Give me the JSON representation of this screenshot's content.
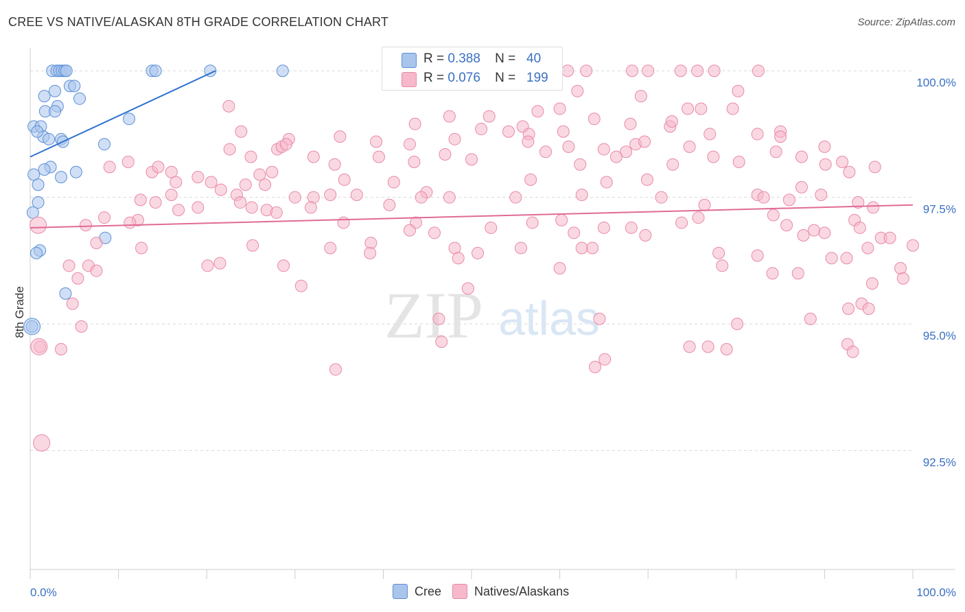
{
  "title": "CREE VS NATIVE/ALASKAN 8TH GRADE CORRELATION CHART",
  "source": "Source: ZipAtlas.com",
  "watermark": {
    "zip": "ZIP",
    "atlas": "atlas"
  },
  "stats": [
    {
      "series": "Cree",
      "r_label": "R =",
      "r": "0.388",
      "n_label": "N =",
      "n": "40",
      "color": "#a9c5ec",
      "edge": "#5b8fd6"
    },
    {
      "series": "Natives/Alaskans",
      "r_label": "R =",
      "r": "0.076",
      "n_label": "N =",
      "n": "199",
      "color": "#f6b8ca",
      "edge": "#e889a8"
    }
  ],
  "legend": [
    {
      "label": "Cree",
      "color": "#a9c5ec",
      "edge": "#5b8fd6"
    },
    {
      "label": "Natives/Alaskans",
      "color": "#f6b8ca",
      "edge": "#e889a8"
    }
  ],
  "chart_data": {
    "type": "scatter",
    "title": "CREE VS NATIVE/ALASKAN 8TH GRADE CORRELATION CHART",
    "xlabel": "",
    "ylabel": "8th Grade",
    "xlim": [
      0,
      100
    ],
    "ylim": [
      90.15,
      100.45
    ],
    "x_tick_labels": [
      {
        "value": 0,
        "label": "0.0%"
      },
      {
        "value": 100,
        "label": "100.0%"
      }
    ],
    "y_ticks": [
      {
        "value": 100.0,
        "label": "100.0%"
      },
      {
        "value": 97.5,
        "label": "97.5%"
      },
      {
        "value": 95.0,
        "label": "95.0%"
      },
      {
        "value": 92.5,
        "label": "92.5%"
      }
    ],
    "series": [
      {
        "name": "Cree",
        "color": "#5b8fd6",
        "fill": "#a9c5ec",
        "trend": {
          "x": [
            0,
            21
          ],
          "y": [
            98.3,
            100.0
          ]
        },
        "points": [
          [
            2.5,
            100.0
          ],
          [
            3.0,
            100.0
          ],
          [
            3.3,
            100.0
          ],
          [
            3.6,
            100.0
          ],
          [
            3.9,
            100.0
          ],
          [
            4.1,
            100.0
          ],
          [
            13.8,
            100.0
          ],
          [
            14.2,
            100.0
          ],
          [
            20.4,
            100.0
          ],
          [
            28.6,
            100.0
          ],
          [
            4.5,
            99.7
          ],
          [
            5.0,
            99.7
          ],
          [
            2.8,
            99.6
          ],
          [
            1.6,
            99.5
          ],
          [
            5.6,
            99.45
          ],
          [
            3.1,
            99.3
          ],
          [
            1.7,
            99.2
          ],
          [
            2.8,
            99.2
          ],
          [
            11.2,
            99.05
          ],
          [
            0.4,
            98.9
          ],
          [
            1.2,
            98.9
          ],
          [
            1.5,
            98.7
          ],
          [
            2.1,
            98.65
          ],
          [
            3.5,
            98.65
          ],
          [
            3.7,
            98.6
          ],
          [
            8.4,
            98.55
          ],
          [
            0.8,
            98.8
          ],
          [
            2.3,
            98.1
          ],
          [
            1.6,
            98.05
          ],
          [
            5.2,
            98.0
          ],
          [
            3.5,
            97.9
          ],
          [
            0.4,
            97.95
          ],
          [
            0.9,
            97.75
          ],
          [
            0.9,
            97.4
          ],
          [
            0.3,
            97.2
          ],
          [
            8.5,
            96.7
          ],
          [
            1.1,
            96.45
          ],
          [
            0.7,
            96.4
          ],
          [
            4.0,
            95.6
          ],
          [
            0.2,
            94.95
          ]
        ],
        "large_points": [
          [
            0.2,
            94.95
          ]
        ]
      },
      {
        "name": "Natives/Alaskans",
        "color": "#e889a8",
        "fill": "#f6b8ca",
        "trend": {
          "x": [
            0,
            100
          ],
          "y": [
            96.9,
            97.35
          ]
        },
        "points": [
          [
            46.0,
            100.0
          ],
          [
            50.0,
            100.0
          ],
          [
            55.6,
            100.0
          ],
          [
            60.9,
            100.0
          ],
          [
            70.0,
            100.0
          ],
          [
            75.6,
            100.0
          ],
          [
            68.2,
            100.0
          ],
          [
            73.7,
            100.0
          ],
          [
            77.5,
            100.0
          ],
          [
            82.5,
            100.0
          ],
          [
            63.0,
            100.0
          ],
          [
            62.0,
            99.6
          ],
          [
            80.2,
            99.6
          ],
          [
            69.2,
            99.5
          ],
          [
            74.5,
            99.25
          ],
          [
            76.0,
            99.25
          ],
          [
            79.6,
            99.25
          ],
          [
            22.5,
            99.3
          ],
          [
            60.0,
            99.25
          ],
          [
            57.5,
            99.2
          ],
          [
            47.5,
            99.1
          ],
          [
            52.0,
            99.1
          ],
          [
            55.8,
            98.9
          ],
          [
            63.9,
            99.05
          ],
          [
            68.0,
            98.95
          ],
          [
            72.5,
            98.9
          ],
          [
            72.7,
            99.0
          ],
          [
            43.6,
            98.95
          ],
          [
            51.1,
            98.85
          ],
          [
            54.2,
            98.8
          ],
          [
            56.5,
            98.75
          ],
          [
            60.4,
            98.8
          ],
          [
            77.0,
            98.75
          ],
          [
            82.4,
            98.75
          ],
          [
            85.0,
            98.8
          ],
          [
            85.0,
            98.7
          ],
          [
            39.2,
            98.6
          ],
          [
            48.1,
            98.65
          ],
          [
            56.4,
            98.6
          ],
          [
            68.6,
            98.55
          ],
          [
            61.0,
            98.5
          ],
          [
            67.5,
            98.4
          ],
          [
            69.6,
            98.6
          ],
          [
            65.0,
            98.45
          ],
          [
            74.7,
            98.5
          ],
          [
            84.5,
            98.4
          ],
          [
            29.3,
            98.65
          ],
          [
            28.0,
            98.45
          ],
          [
            28.5,
            98.5
          ],
          [
            29.0,
            98.55
          ],
          [
            23.9,
            98.8
          ],
          [
            22.6,
            98.45
          ],
          [
            35.1,
            98.7
          ],
          [
            25.0,
            98.3
          ],
          [
            39.5,
            98.3
          ],
          [
            43.5,
            98.2
          ],
          [
            47.0,
            98.35
          ],
          [
            43.0,
            98.55
          ],
          [
            32.1,
            98.3
          ],
          [
            34.5,
            98.15
          ],
          [
            50.0,
            98.25
          ],
          [
            58.4,
            98.4
          ],
          [
            62.3,
            98.15
          ],
          [
            66.4,
            98.3
          ],
          [
            72.8,
            98.15
          ],
          [
            77.4,
            98.3
          ],
          [
            80.3,
            98.2
          ],
          [
            87.4,
            98.3
          ],
          [
            90.1,
            98.15
          ],
          [
            92.8,
            98.0
          ],
          [
            95.7,
            98.1
          ],
          [
            92.0,
            98.2
          ],
          [
            90.0,
            98.5
          ],
          [
            11.1,
            98.2
          ],
          [
            9.0,
            98.1
          ],
          [
            13.8,
            98.0
          ],
          [
            14.5,
            98.1
          ],
          [
            16.0,
            98.0
          ],
          [
            16.5,
            97.8
          ],
          [
            19.0,
            97.9
          ],
          [
            27.4,
            98.0
          ],
          [
            26.0,
            97.95
          ],
          [
            21.6,
            97.65
          ],
          [
            20.5,
            97.8
          ],
          [
            24.4,
            97.75
          ],
          [
            26.6,
            97.75
          ],
          [
            41.2,
            97.8
          ],
          [
            35.6,
            97.85
          ],
          [
            44.9,
            97.6
          ],
          [
            56.7,
            97.85
          ],
          [
            65.3,
            97.8
          ],
          [
            69.9,
            97.85
          ],
          [
            82.4,
            97.55
          ],
          [
            87.4,
            97.7
          ],
          [
            89.6,
            97.55
          ],
          [
            93.8,
            97.4
          ],
          [
            95.5,
            97.3
          ],
          [
            12.5,
            97.45
          ],
          [
            14.2,
            97.4
          ],
          [
            16.0,
            97.55
          ],
          [
            16.8,
            97.25
          ],
          [
            19.0,
            97.3
          ],
          [
            23.4,
            97.55
          ],
          [
            23.8,
            97.4
          ],
          [
            25.1,
            97.3
          ],
          [
            26.8,
            97.25
          ],
          [
            27.9,
            97.2
          ],
          [
            30.0,
            97.5
          ],
          [
            32.1,
            97.5
          ],
          [
            34.0,
            97.55
          ],
          [
            37.0,
            97.55
          ],
          [
            40.7,
            97.35
          ],
          [
            44.3,
            97.5
          ],
          [
            47.5,
            97.5
          ],
          [
            55.0,
            97.5
          ],
          [
            62.5,
            97.55
          ],
          [
            71.5,
            97.5
          ],
          [
            76.4,
            97.35
          ],
          [
            83.1,
            97.5
          ],
          [
            86.0,
            97.45
          ],
          [
            31.8,
            97.3
          ],
          [
            12.2,
            97.05
          ],
          [
            8.4,
            97.1
          ],
          [
            6.3,
            96.95
          ],
          [
            11.3,
            97.0
          ],
          [
            35.5,
            97.0
          ],
          [
            43.7,
            97.0
          ],
          [
            43.0,
            96.85
          ],
          [
            45.8,
            96.8
          ],
          [
            52.2,
            96.9
          ],
          [
            56.9,
            97.0
          ],
          [
            60.2,
            97.05
          ],
          [
            61.6,
            96.8
          ],
          [
            65.0,
            96.9
          ],
          [
            68.1,
            96.9
          ],
          [
            69.7,
            96.75
          ],
          [
            73.8,
            97.0
          ],
          [
            75.7,
            97.1
          ],
          [
            84.2,
            97.15
          ],
          [
            85.7,
            96.95
          ],
          [
            87.6,
            96.75
          ],
          [
            88.8,
            96.85
          ],
          [
            90.0,
            96.8
          ],
          [
            93.4,
            97.05
          ],
          [
            94.0,
            96.9
          ],
          [
            96.4,
            96.7
          ],
          [
            7.5,
            96.6
          ],
          [
            12.6,
            96.5
          ],
          [
            25.2,
            96.55
          ],
          [
            34.0,
            96.5
          ],
          [
            38.6,
            96.6
          ],
          [
            38.5,
            96.4
          ],
          [
            48.1,
            96.5
          ],
          [
            48.5,
            96.3
          ],
          [
            50.7,
            96.4
          ],
          [
            55.6,
            96.5
          ],
          [
            62.5,
            96.5
          ],
          [
            63.7,
            96.5
          ],
          [
            78.0,
            96.4
          ],
          [
            78.4,
            96.15
          ],
          [
            82.4,
            96.35
          ],
          [
            84.1,
            96.0
          ],
          [
            87.0,
            96.0
          ],
          [
            90.8,
            96.3
          ],
          [
            92.5,
            96.3
          ],
          [
            94.9,
            96.5
          ],
          [
            98.6,
            96.1
          ],
          [
            100.0,
            96.55
          ],
          [
            97.4,
            96.7
          ],
          [
            4.4,
            96.15
          ],
          [
            6.6,
            96.15
          ],
          [
            7.5,
            96.05
          ],
          [
            5.4,
            95.9
          ],
          [
            20.1,
            96.15
          ],
          [
            21.5,
            96.2
          ],
          [
            28.7,
            96.15
          ],
          [
            60.0,
            96.1
          ],
          [
            30.7,
            95.75
          ],
          [
            49.6,
            95.7
          ],
          [
            95.4,
            95.8
          ],
          [
            4.8,
            95.4
          ],
          [
            92.7,
            95.3
          ],
          [
            94.2,
            95.4
          ],
          [
            95.0,
            95.3
          ],
          [
            98.9,
            95.9
          ],
          [
            5.8,
            94.95
          ],
          [
            46.3,
            95.1
          ],
          [
            64.5,
            95.1
          ],
          [
            80.1,
            95.0
          ],
          [
            88.4,
            95.1
          ],
          [
            46.6,
            94.65
          ],
          [
            74.7,
            94.55
          ],
          [
            76.8,
            94.55
          ],
          [
            1.1,
            94.55
          ],
          [
            3.5,
            94.5
          ],
          [
            65.1,
            94.3
          ],
          [
            78.9,
            94.5
          ],
          [
            92.6,
            94.6
          ],
          [
            93.2,
            94.45
          ],
          [
            34.6,
            94.1
          ],
          [
            64.0,
            94.15
          ]
        ],
        "large_points": [
          [
            0.9,
            96.95
          ],
          [
            1.0,
            94.55
          ],
          [
            1.3,
            92.65
          ]
        ]
      }
    ]
  }
}
